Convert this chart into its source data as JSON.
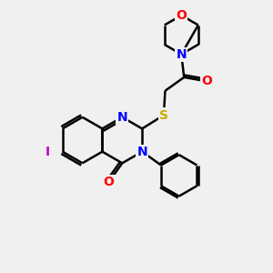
{
  "bg_color": "#f0f0f0",
  "atom_colors": {
    "C": "#000000",
    "N": "#0000ff",
    "O": "#ff0000",
    "S": "#ccaa00",
    "I": "#cc00cc"
  },
  "bond_color": "#000000",
  "bond_width": 1.8,
  "font_size": 10,
  "fig_size": [
    3.0,
    3.0
  ],
  "dpi": 100,
  "xlim": [
    0,
    10
  ],
  "ylim": [
    0,
    10
  ]
}
